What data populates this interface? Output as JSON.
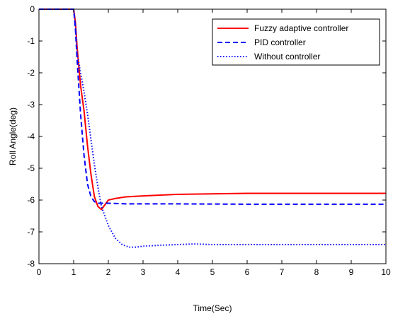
{
  "chart_data": {
    "type": "line",
    "title": "",
    "xlabel": "Time(Sec)",
    "ylabel": "Roll Angle(deg)",
    "xlim": [
      0,
      10
    ],
    "ylim": [
      -8,
      0
    ],
    "xticks": [
      0,
      1,
      2,
      3,
      4,
      5,
      6,
      7,
      8,
      9,
      10
    ],
    "yticks": [
      0,
      -1,
      -2,
      -3,
      -4,
      -5,
      -6,
      -7,
      -8
    ],
    "grid": false,
    "legend_position": "top-right",
    "series": [
      {
        "name": "Fuzzy adaptive controller",
        "color": "#ff0000",
        "style": "solid",
        "x": [
          0,
          1.0,
          1.05,
          1.1,
          1.2,
          1.3,
          1.4,
          1.5,
          1.6,
          1.7,
          1.8,
          1.9,
          2.0,
          2.2,
          2.5,
          3.0,
          4.0,
          6.0,
          10.0
        ],
        "y": [
          0,
          0,
          -0.4,
          -1.2,
          -2.4,
          -3.2,
          -4.3,
          -5.2,
          -5.9,
          -6.2,
          -6.3,
          -6.15,
          -6.0,
          -5.95,
          -5.9,
          -5.87,
          -5.82,
          -5.79,
          -5.79
        ]
      },
      {
        "name": "PID controller",
        "color": "#0000ff",
        "style": "dashed",
        "x": [
          0,
          1.0,
          1.05,
          1.1,
          1.2,
          1.3,
          1.4,
          1.5,
          1.6,
          1.7,
          1.8,
          2.0,
          2.5,
          3.0,
          4.0,
          6.0,
          10.0
        ],
        "y": [
          0,
          0,
          -0.6,
          -1.6,
          -3.3,
          -4.6,
          -5.5,
          -5.9,
          -6.05,
          -6.1,
          -6.1,
          -6.1,
          -6.12,
          -6.12,
          -6.12,
          -6.13,
          -6.13
        ]
      },
      {
        "name": "Without controller",
        "color": "#0000ff",
        "style": "dotted",
        "x": [
          0,
          1.0,
          1.05,
          1.1,
          1.2,
          1.3,
          1.4,
          1.5,
          1.6,
          1.7,
          1.8,
          2.0,
          2.2,
          2.4,
          2.6,
          2.8,
          3.0,
          3.5,
          4.0,
          4.5,
          5.0,
          6.0,
          10.0
        ],
        "y": [
          0,
          0,
          -0.5,
          -1.4,
          -2.0,
          -2.6,
          -3.3,
          -4.1,
          -4.9,
          -5.6,
          -6.2,
          -6.8,
          -7.2,
          -7.4,
          -7.48,
          -7.48,
          -7.45,
          -7.42,
          -7.4,
          -7.38,
          -7.4,
          -7.4,
          -7.4
        ]
      }
    ]
  }
}
